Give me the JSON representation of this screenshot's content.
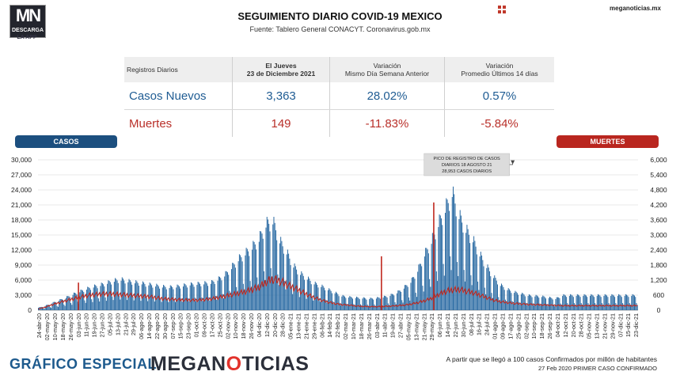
{
  "header": {
    "logo_top": "MN",
    "logo_bottom": "DESCARGA",
    "logo_sub": "LA APP",
    "title": "SEGUIMIENTO DIARIO COVID-19 MEXICO",
    "source": "Fuente: Tablero General CONACYT. Coronavirus.gob.mx",
    "website": "meganoticias.mx"
  },
  "stats_table": {
    "headers": [
      "Registros Diarios",
      "El Jueves\n23 de Diciembre 2021",
      "Variación\nMismo Día Semana Anterior",
      "Variación\nPromedio Últimos 14 días"
    ],
    "rows": [
      {
        "label": "Casos Nuevos",
        "value": "3,363",
        "var_week": "28.02%",
        "var_14d": "0.57%"
      },
      {
        "label": "Muertes",
        "value": "149",
        "var_week": "-11.83%",
        "var_14d": "-5.84%"
      }
    ]
  },
  "legend": {
    "left": "CASOS",
    "right": "MUERTES"
  },
  "footer": {
    "left": "GRÁFICO ESPECIAL",
    "brand_a": "MEGAN",
    "brand_o": "O",
    "brand_b": "TICIAS",
    "note1": "A partir que se llegó a 100 casos Confirmados por millón de habitantes",
    "note2": "27 Feb 2020 PRIMER CASO CONFIRMADO"
  },
  "colors": {
    "cases": "#2466a0",
    "deaths": "#c0281e",
    "casos_pill": "#1c4f7f",
    "muertes_pill": "#b9261f"
  },
  "chart_data": {
    "type": "bar",
    "title": "SEGUIMIENTO DIARIO COVID-19 MEXICO",
    "x_range": [
      "2020-04-24",
      "2021-12-23"
    ],
    "y_left": {
      "label": "CASOS",
      "ticks": [
        0,
        3000,
        6000,
        9000,
        12000,
        15000,
        18000,
        21000,
        24000,
        27000,
        30000
      ],
      "tick_labels": [
        "0",
        "3,000",
        "6,000",
        "9,000",
        "12,000",
        "15,000",
        "18,000",
        "21,000",
        "24,000",
        "27,000",
        "30,000"
      ],
      "range": [
        0,
        30000
      ]
    },
    "y_right": {
      "label": "MUERTES",
      "ticks": [
        0,
        600,
        1200,
        1800,
        2400,
        3000,
        3600,
        4200,
        4800,
        5400,
        6000
      ],
      "tick_labels": [
        "0",
        "600",
        "1,200",
        "1,800",
        "2,400",
        "3,000",
        "3,600",
        "4,200",
        "4,800",
        "5,400",
        "6,000"
      ],
      "range": [
        0,
        6000
      ]
    },
    "x_tick_labels": [
      "24-abr-20",
      "02-may-20",
      "10-may-20",
      "18-may-20",
      "26-may-20",
      "03-jun-20",
      "11-jun-20",
      "19-jun-20",
      "27-jun-20",
      "05-jul-20",
      "13-jul-20",
      "21-jul-20",
      "29-jul-20",
      "06-ago-20",
      "14-ago-20",
      "22-ago-20",
      "30-ago-20",
      "07-sep-20",
      "15-sep-20",
      "23-sep-20",
      "01-oct-20",
      "09-oct-20",
      "17-oct-20",
      "25-oct-20",
      "02-nov-20",
      "10-nov-20",
      "18-nov-20",
      "26-nov-20",
      "04-dic-20",
      "12-dic-20",
      "20-dic-20",
      "28-dic-20",
      "05-ene-21",
      "13-ene-21",
      "21-ene-21",
      "29-ene-21",
      "06-feb-21",
      "14-feb-21",
      "22-feb-21",
      "02-mar-21",
      "10-mar-21",
      "18-mar-21",
      "26-mar-21",
      "03-abr-21",
      "11-abr-21",
      "19-abr-21",
      "27-abr-21",
      "05-may-21",
      "13-may-21",
      "21-may-21",
      "29-may-21",
      "06-jun-21",
      "14-jun-21",
      "22-jun-21",
      "30-jun-21",
      "08-jul-21",
      "16-jul-21",
      "24-jul-21",
      "01-ago-21",
      "09-ago-21",
      "17-ago-21",
      "25-ago-21",
      "02-sep-21",
      "10-sep-21",
      "18-sep-21",
      "26-sep-21",
      "04-oct-21",
      "12-oct-21",
      "20-oct-21",
      "28-oct-21",
      "05-nov-21",
      "13-nov-21",
      "21-nov-21",
      "29-nov-21",
      "07-dic-21",
      "15-dic-21",
      "23-dic-21"
    ],
    "annotation": {
      "text": [
        "PICO DE REGISTRO DE CASOS",
        "DIARIOS 18 AGOSTO 21",
        "28,953 CASOS DIARIOS"
      ],
      "date": "2021-08-18",
      "value": 28953
    },
    "series": [
      {
        "name": "CASOS",
        "axis": "left",
        "style": "bars",
        "weekly_avg_values": [
          450,
          800,
          1300,
          1800,
          2300,
          2900,
          3400,
          3900,
          4300,
          4600,
          5000,
          5400,
          5600,
          5300,
          5100,
          4900,
          4700,
          4500,
          4300,
          4200,
          4300,
          4500,
          4700,
          4800,
          4900,
          5000,
          5600,
          6400,
          7800,
          9300,
          10400,
          11500,
          13000,
          15700,
          16300,
          12700,
          10600,
          8100,
          6700,
          5800,
          4900,
          4400,
          3800,
          3200,
          2600,
          2400,
          2300,
          2200,
          2100,
          2200,
          2400,
          2700,
          3200,
          4100,
          5200,
          7300,
          10200,
          12600,
          15800,
          18500,
          21500,
          17300,
          14700,
          12900,
          10200,
          8000,
          6100,
          4600,
          3800,
          3300,
          3000,
          2700,
          2600,
          2500,
          2300,
          2100,
          2700
        ]
      },
      {
        "name": "MUERTES",
        "axis": "right",
        "style": "line",
        "weekly_avg_values": [
          50,
          120,
          220,
          300,
          380,
          450,
          520,
          580,
          620,
          640,
          650,
          640,
          620,
          600,
          580,
          560,
          540,
          500,
          460,
          440,
          420,
          410,
          400,
          400,
          420,
          450,
          500,
          560,
          620,
          680,
          740,
          830,
          920,
          1120,
          1240,
          1160,
          1020,
          900,
          760,
          620,
          500,
          400,
          320,
          260,
          220,
          200,
          170,
          150,
          140,
          140,
          150,
          160,
          180,
          200,
          240,
          300,
          380,
          480,
          620,
          740,
          820,
          820,
          760,
          700,
          600,
          500,
          400,
          340,
          300,
          270,
          250,
          230,
          220,
          210,
          200,
          190,
          180
        ]
      }
    ],
    "spikes": [
      {
        "date": "2021-05-30",
        "series": "CASOS",
        "value": 21500
      },
      {
        "date": "2020-06-04",
        "series": "MUERTES",
        "value": 1100
      },
      {
        "date": "2021-04-07",
        "series": "MUERTES",
        "value": 2150
      }
    ]
  }
}
